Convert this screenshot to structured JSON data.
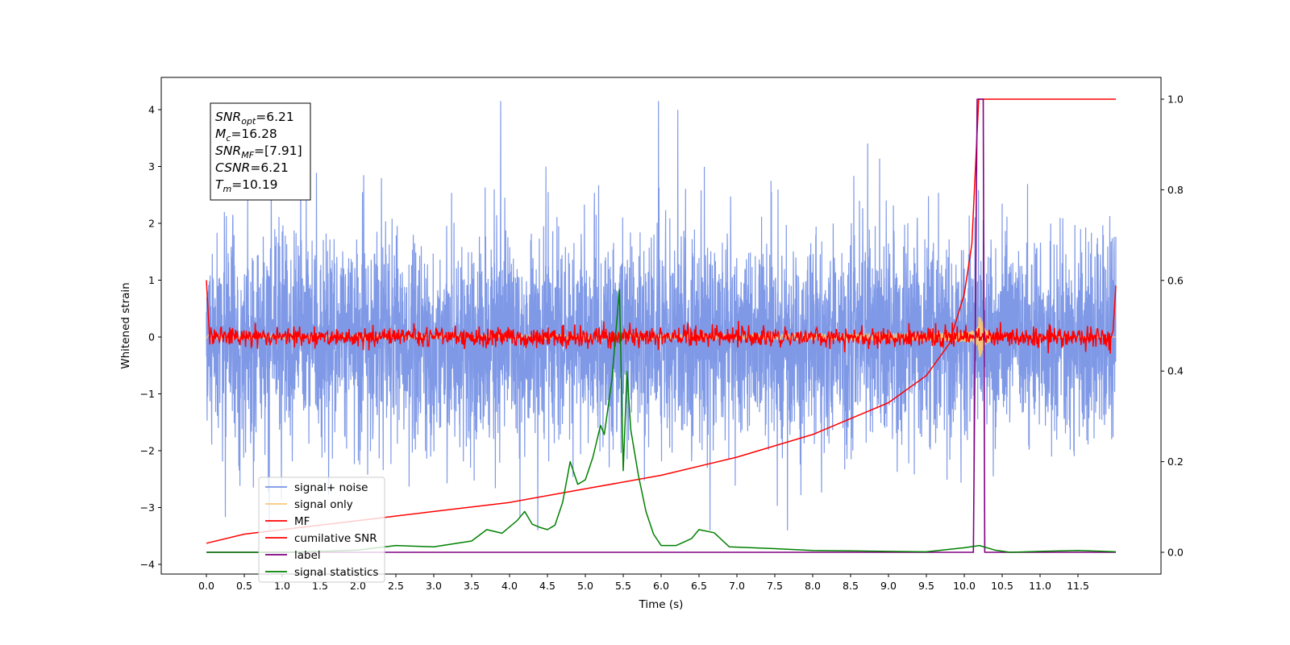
{
  "chart_data": {
    "type": "line",
    "xlabel": "Time (s)",
    "ylabel": "Whitened strain",
    "xlim": [
      -0.6,
      12.6
    ],
    "ylim": [
      -4.15,
      4.55
    ],
    "y2lim": [
      -0.05,
      1.05
    ],
    "x_ticks": [
      "0.0",
      "0.5",
      "1.0",
      "1.5",
      "2.0",
      "2.5",
      "3.0",
      "3.5",
      "4.0",
      "4.5",
      "5.0",
      "5.5",
      "6.0",
      "6.5",
      "7.0",
      "7.5",
      "8.0",
      "8.5",
      "9.0",
      "9.5",
      "10.0",
      "10.5",
      "11.0",
      "11.5"
    ],
    "y_ticks": [
      "4",
      "3",
      "2",
      "1",
      "0",
      "−1",
      "−2",
      "−3",
      "−4"
    ],
    "y2_ticks": [
      "1.0",
      "0.8",
      "0.6",
      "0.4",
      "0.2",
      "0.0"
    ],
    "annotation": {
      "lines": [
        {
          "sym": "SNR",
          "sub": "opt",
          "value": "=6.21"
        },
        {
          "sym": "M",
          "sub": "c",
          "value": "=16.28"
        },
        {
          "sym": "SNR",
          "sub": "MF",
          "value": "=[7.91]"
        },
        {
          "sym": "CSNR",
          "sub": "",
          "value": "=6.21"
        },
        {
          "sym": "T",
          "sub": "m",
          "value": "=10.19"
        }
      ]
    },
    "series": [
      {
        "name": "signal+ noise",
        "color": "#7893e6",
        "axis": "left",
        "kind": "noise",
        "x_range": [
          0.0,
          12.0
        ],
        "amplitude_range": [
          -3.4,
          4.15
        ]
      },
      {
        "name": "signal only",
        "color": "#f5c77a",
        "axis": "left",
        "kind": "chirp",
        "t_merger": 10.19
      },
      {
        "name": "MF",
        "color": "#ff0000",
        "axis": "left",
        "kind": "mf"
      },
      {
        "name": "cumilative SNR",
        "color": "#ff0000",
        "axis": "right",
        "x": [
          0.0,
          0.5,
          1.0,
          2.0,
          3.0,
          4.0,
          5.0,
          6.0,
          7.0,
          8.0,
          9.0,
          9.5,
          9.8,
          10.0,
          10.1,
          10.19,
          12.0
        ],
        "y": [
          0.02,
          0.04,
          0.05,
          0.07,
          0.09,
          0.11,
          0.14,
          0.17,
          0.21,
          0.26,
          0.33,
          0.39,
          0.46,
          0.57,
          0.68,
          1.0,
          1.0
        ]
      },
      {
        "name": "label",
        "color": "#800080",
        "axis": "right",
        "x": [
          0.0,
          10.12,
          10.17,
          10.25,
          10.27,
          12.0
        ],
        "y": [
          0.0,
          0.0,
          1.0,
          1.0,
          0.0,
          0.0
        ]
      },
      {
        "name": "signal statistics",
        "color": "#008000",
        "axis": "right",
        "x": [
          0.0,
          0.5,
          1.0,
          1.5,
          2.0,
          2.5,
          3.0,
          3.5,
          3.7,
          3.9,
          4.1,
          4.2,
          4.3,
          4.4,
          4.5,
          4.6,
          4.7,
          4.8,
          4.9,
          5.0,
          5.1,
          5.2,
          5.25,
          5.35,
          5.45,
          5.5,
          5.55,
          5.6,
          5.7,
          5.8,
          5.9,
          6.0,
          6.2,
          6.4,
          6.5,
          6.7,
          6.9,
          7.2,
          7.5,
          8.0,
          8.5,
          9.0,
          9.5,
          10.0,
          10.2,
          10.4,
          10.6,
          11.0,
          11.5,
          12.0
        ],
        "y": [
          0.0,
          0.0,
          0.0,
          0.002,
          0.005,
          0.015,
          0.012,
          0.025,
          0.05,
          0.042,
          0.07,
          0.09,
          0.062,
          0.055,
          0.05,
          0.06,
          0.11,
          0.2,
          0.15,
          0.16,
          0.21,
          0.28,
          0.26,
          0.38,
          0.58,
          0.18,
          0.4,
          0.27,
          0.17,
          0.09,
          0.04,
          0.015,
          0.015,
          0.03,
          0.05,
          0.043,
          0.012,
          0.01,
          0.008,
          0.004,
          0.003,
          0.002,
          0.001,
          0.01,
          0.015,
          0.005,
          0.0,
          0.002,
          0.004,
          0.001
        ]
      }
    ],
    "legend": {
      "placement": "lower-left",
      "entries": [
        "signal+ noise",
        "signal only",
        "MF",
        "cumilative SNR",
        "label",
        "signal statistics"
      ]
    }
  }
}
